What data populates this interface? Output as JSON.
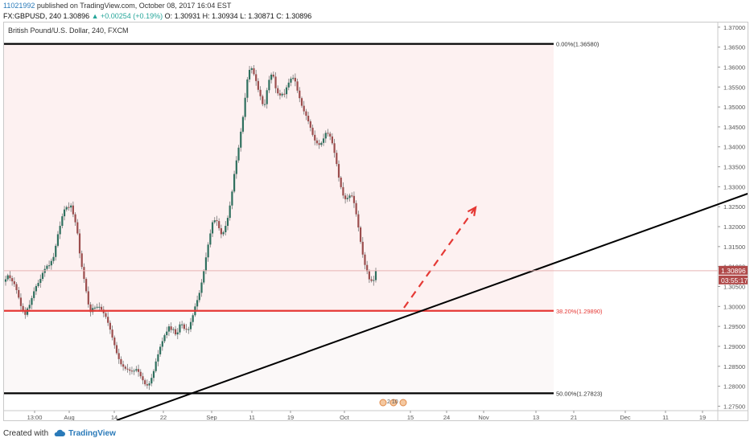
{
  "header": {
    "username": "11021992",
    "published_text": " published on TradingView.com, October 08, 2017 16:04 EST",
    "symbol": "FX:GBPUSD, 240",
    "price": "1.30896",
    "change": "▲ +0.00254 (+0.19%)",
    "o": "O: 1.30931",
    "h": "H: 1.30934",
    "l": "L: 1.30871",
    "c": "C: 1.30896"
  },
  "footer": {
    "created_with": "Created with",
    "brand": "TradingView"
  },
  "colors": {
    "bull": "#2f6f5e",
    "bear": "#9b4d4d",
    "fib": "#e53935",
    "trend": "#000000",
    "arrow": "#e53935"
  },
  "chart_data": {
    "type": "candlestick",
    "title": "British Pound/U.S. Dollar, 240, FXCM",
    "ylim": [
      1.27388,
      1.37117
    ],
    "y_ticks": [
      "1.37000",
      "1.36500",
      "1.36000",
      "1.35500",
      "1.35000",
      "1.34500",
      "1.34000",
      "1.33500",
      "1.33000",
      "1.32500",
      "1.32000",
      "1.31500",
      "1.31000",
      "1.30500",
      "1.30000",
      "1.29500",
      "1.29000",
      "1.28500",
      "1.28000",
      "1.27500"
    ],
    "x_ticks": [
      "13:00",
      "Aug",
      "14",
      "22",
      "Sep",
      "11",
      "19",
      "Oct",
      "15",
      "24",
      "Nov",
      "13",
      "21",
      "Dec",
      "11",
      "19"
    ],
    "last_price_label": "1.30896",
    "countdown_label": "03:55:17",
    "fib_levels": [
      {
        "label": "0.00%(1.36580)",
        "value": 1.3658,
        "color": "#000000"
      },
      {
        "label": "38.20%(1.29890)",
        "value": 1.2989,
        "color": "#e53935"
      },
      {
        "label": "50.00%(1.27823)",
        "value": 1.27823,
        "color": "#000000"
      }
    ],
    "events_label": "2  10",
    "series": [
      {
        "name": "GBPUSD",
        "close": [
          1.3068,
          1.3078,
          1.3071,
          1.3063,
          1.3056,
          1.3041,
          1.3022,
          1.3001,
          1.2989,
          1.2979,
          1.2995,
          1.3004,
          1.3021,
          1.3038,
          1.3051,
          1.3059,
          1.3069,
          1.3084,
          1.3094,
          1.3102,
          1.3103,
          1.3114,
          1.3124,
          1.3152,
          1.3181,
          1.3202,
          1.3226,
          1.3243,
          1.3249,
          1.3248,
          1.3253,
          1.3231,
          1.3211,
          1.3183,
          1.3133,
          1.3099,
          1.3069,
          1.3038,
          1.3005,
          1.2986,
          1.2996,
          1.2997,
          1.2999,
          1.2999,
          1.2992,
          1.2983,
          1.2974,
          1.2959,
          1.2942,
          1.2922,
          1.2903,
          1.2883,
          1.2868,
          1.2855,
          1.2849,
          1.2844,
          1.2842,
          1.2839,
          1.2837,
          1.2839,
          1.2843,
          1.2836,
          1.2825,
          1.2815,
          1.2805,
          1.2802,
          1.2807,
          1.2821,
          1.2838,
          1.2862,
          1.288,
          1.2899,
          1.2913,
          1.2928,
          1.2937,
          1.295,
          1.2941,
          1.2943,
          1.293,
          1.2935,
          1.2955,
          1.2955,
          1.2944,
          1.2942,
          1.2943,
          1.2961,
          1.2978,
          1.3,
          1.3016,
          1.3034,
          1.306,
          1.3089,
          1.3123,
          1.3155,
          1.3183,
          1.3211,
          1.3216,
          1.3214,
          1.3196,
          1.3181,
          1.3186,
          1.3202,
          1.3222,
          1.3253,
          1.3288,
          1.3332,
          1.3366,
          1.3398,
          1.3438,
          1.3475,
          1.3523,
          1.3569,
          1.3593,
          1.3597,
          1.3582,
          1.3565,
          1.3543,
          1.3527,
          1.3507,
          1.3507,
          1.3542,
          1.3568,
          1.3581,
          1.3576,
          1.3547,
          1.3534,
          1.3529,
          1.3533,
          1.3532,
          1.3549,
          1.3561,
          1.3571,
          1.3573,
          1.3564,
          1.3541,
          1.3522,
          1.3503,
          1.3489,
          1.3478,
          1.3464,
          1.3448,
          1.343,
          1.3416,
          1.3409,
          1.3405,
          1.341,
          1.3421,
          1.3435,
          1.3433,
          1.3426,
          1.3409,
          1.3385,
          1.3357,
          1.3323,
          1.3299,
          1.3278,
          1.3269,
          1.3272,
          1.3278,
          1.3277,
          1.3259,
          1.3231,
          1.3198,
          1.3162,
          1.313,
          1.3104,
          1.3088,
          1.3068,
          1.3064,
          1.3066,
          1.309
        ]
      }
    ]
  }
}
